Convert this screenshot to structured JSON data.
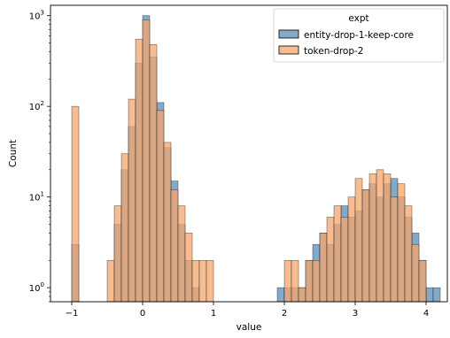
{
  "chart_data": {
    "type": "histogram",
    "xlabel": "value",
    "ylabel": "Count",
    "x_ticks": [
      -1,
      0,
      1,
      2,
      3,
      4
    ],
    "x_tick_labels": [
      "−1",
      "0",
      "1",
      "2",
      "3",
      "4"
    ],
    "xlim": [
      -1.3,
      4.3
    ],
    "y_scale": "log",
    "ylim": [
      0.7,
      1300
    ],
    "y_ticks": [
      1,
      10,
      100,
      1000
    ],
    "y_tick_labels": [
      {
        "base": "10",
        "exp": "0"
      },
      {
        "base": "10",
        "exp": "1"
      },
      {
        "base": "10",
        "exp": "2"
      },
      {
        "base": "10",
        "exp": "3"
      }
    ],
    "bin_width": 0.1,
    "legend": {
      "title": "expt",
      "position": "top-right",
      "entries": [
        "entity-drop-1-keep-core",
        "token-drop-2"
      ]
    },
    "series": [
      {
        "name": "entity-drop-1-keep-core",
        "color": "#5b8db8",
        "bins": [
          [
            -1.0,
            3
          ],
          [
            -0.4,
            5
          ],
          [
            -0.3,
            20
          ],
          [
            -0.2,
            60
          ],
          [
            -0.1,
            300
          ],
          [
            0.0,
            1000
          ],
          [
            0.1,
            350
          ],
          [
            0.2,
            110
          ],
          [
            0.3,
            35
          ],
          [
            0.4,
            15
          ],
          [
            0.5,
            5
          ],
          [
            0.6,
            2
          ],
          [
            0.7,
            1
          ],
          [
            1.9,
            1
          ],
          [
            2.0,
            1
          ],
          [
            2.1,
            1
          ],
          [
            2.2,
            1
          ],
          [
            2.3,
            2
          ],
          [
            2.4,
            3
          ],
          [
            2.5,
            4
          ],
          [
            2.6,
            3
          ],
          [
            2.7,
            5
          ],
          [
            2.8,
            8
          ],
          [
            2.9,
            6
          ],
          [
            3.0,
            7
          ],
          [
            3.1,
            12
          ],
          [
            3.2,
            14
          ],
          [
            3.3,
            10
          ],
          [
            3.4,
            14
          ],
          [
            3.5,
            16
          ],
          [
            3.6,
            10
          ],
          [
            3.7,
            6
          ],
          [
            3.8,
            4
          ],
          [
            3.9,
            2
          ],
          [
            4.0,
            1
          ],
          [
            4.1,
            1
          ]
        ]
      },
      {
        "name": "token-drop-2",
        "color": "#f6a56b",
        "bins": [
          [
            -1.0,
            100
          ],
          [
            -0.5,
            2
          ],
          [
            -0.4,
            8
          ],
          [
            -0.3,
            30
          ],
          [
            -0.2,
            120
          ],
          [
            -0.1,
            550
          ],
          [
            0.0,
            900
          ],
          [
            0.1,
            480
          ],
          [
            0.2,
            90
          ],
          [
            0.3,
            40
          ],
          [
            0.4,
            12
          ],
          [
            0.5,
            8
          ],
          [
            0.6,
            4
          ],
          [
            0.7,
            2
          ],
          [
            0.8,
            2
          ],
          [
            0.9,
            2
          ],
          [
            2.0,
            2
          ],
          [
            2.1,
            2
          ],
          [
            2.2,
            1
          ],
          [
            2.3,
            2
          ],
          [
            2.4,
            2
          ],
          [
            2.5,
            4
          ],
          [
            2.6,
            6
          ],
          [
            2.7,
            8
          ],
          [
            2.8,
            6
          ],
          [
            2.9,
            10
          ],
          [
            3.0,
            16
          ],
          [
            3.1,
            12
          ],
          [
            3.2,
            18
          ],
          [
            3.3,
            20
          ],
          [
            3.4,
            18
          ],
          [
            3.5,
            10
          ],
          [
            3.6,
            14
          ],
          [
            3.7,
            8
          ],
          [
            3.8,
            3
          ],
          [
            3.9,
            2
          ]
        ]
      }
    ]
  }
}
